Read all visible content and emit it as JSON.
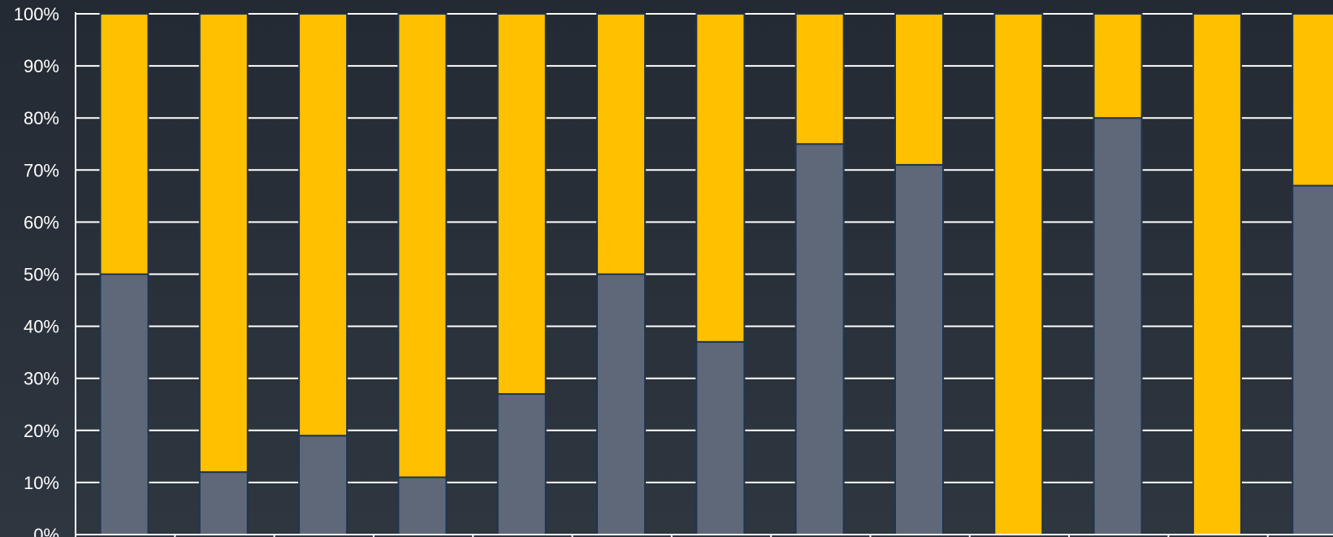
{
  "chart_data": {
    "type": "bar",
    "stacked": true,
    "percent": true,
    "title": "",
    "xlabel": "",
    "ylabel": "",
    "ylim": [
      0,
      100
    ],
    "yticks": [
      "0%",
      "10%",
      "20%",
      "30%",
      "40%",
      "50%",
      "60%",
      "70%",
      "80%",
      "90%",
      "100%"
    ],
    "grid": true,
    "legend": "none",
    "categories": [
      "",
      "",
      "",
      "",
      "",
      "",
      "",
      "",
      "",
      "",
      "",
      "",
      ""
    ],
    "series": [
      {
        "color": "#5f6878",
        "values": [
          50,
          12,
          19,
          11,
          27,
          50,
          37,
          75,
          71,
          0,
          80,
          0,
          67
        ]
      },
      {
        "color": "#ffc000",
        "values": [
          50,
          88,
          81,
          89,
          73,
          50,
          63,
          25,
          29,
          100,
          20,
          100,
          33
        ]
      }
    ],
    "colors": {
      "background_top": "#242a33",
      "background_bottom": "#2e3640",
      "gridline": "#ffffff",
      "bar_border": "#1f3450",
      "axis": "#ffffff",
      "tick_label": "#ffffff"
    }
  }
}
